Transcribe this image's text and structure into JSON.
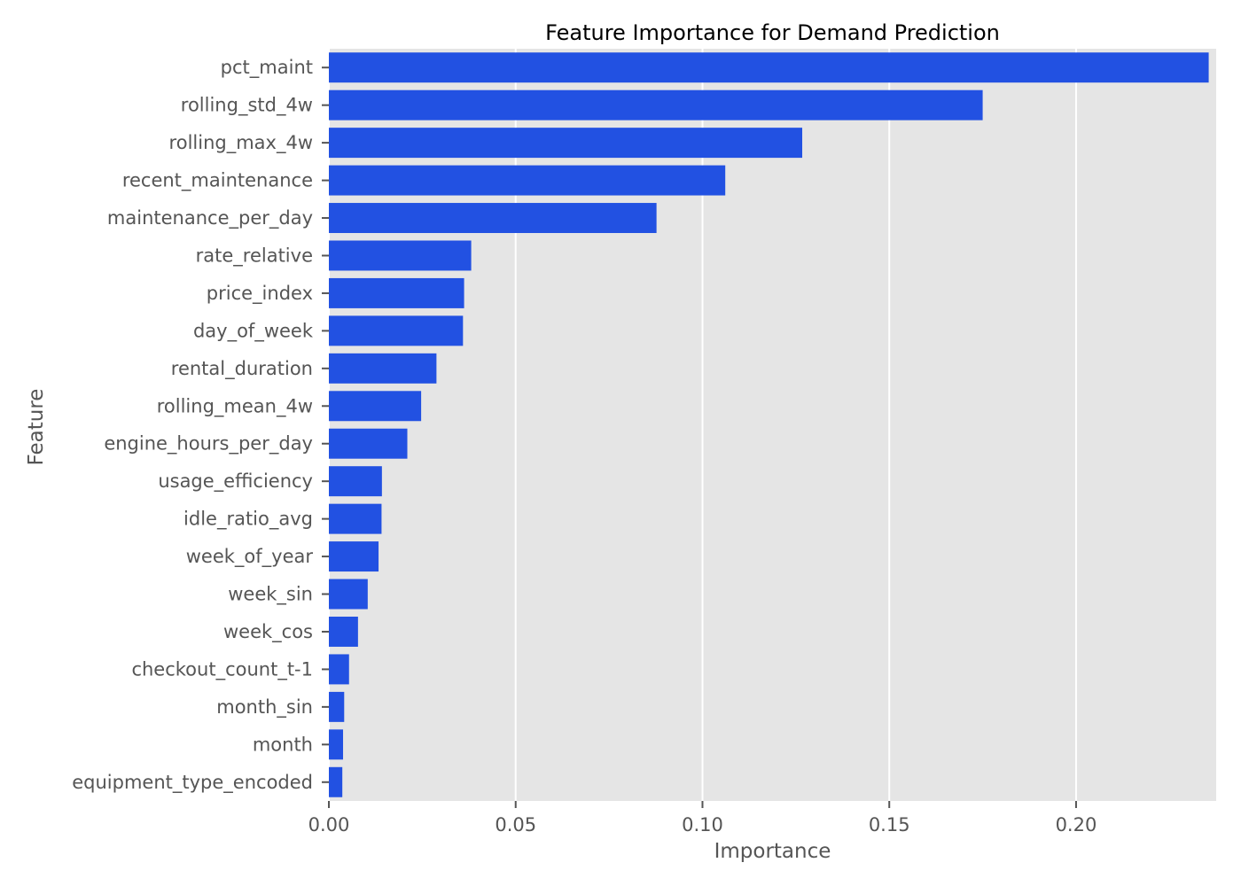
{
  "chart_data": {
    "type": "bar",
    "orientation": "horizontal",
    "title": "Feature Importance for Demand Prediction",
    "xlabel": "Importance",
    "ylabel": "Feature",
    "xlim": [
      0,
      0.2375
    ],
    "xticks": [
      0.0,
      0.05,
      0.1,
      0.15,
      0.2
    ],
    "xtick_labels": [
      "0.00",
      "0.05",
      "0.10",
      "0.15",
      "0.20"
    ],
    "grid": true,
    "legend": "none",
    "bar_color": "#2251e2",
    "background_color": "#e5e5e5",
    "grid_color": "#ffffff",
    "categories": [
      "pct_maint",
      "rolling_std_4w",
      "rolling_max_4w",
      "recent_maintenance",
      "maintenance_per_day",
      "rate_relative",
      "price_index",
      "day_of_week",
      "rental_duration",
      "rolling_mean_4w",
      "engine_hours_per_day",
      "usage_efficiency",
      "idle_ratio_avg",
      "week_of_year",
      "week_sin",
      "week_cos",
      "checkout_count_t-1",
      "month_sin",
      "month",
      "equipment_type_encoded"
    ],
    "values": [
      0.2355,
      0.175,
      0.1267,
      0.1061,
      0.0877,
      0.0381,
      0.0362,
      0.0359,
      0.0288,
      0.0247,
      0.021,
      0.0142,
      0.0141,
      0.0133,
      0.0104,
      0.0078,
      0.0054,
      0.0041,
      0.0038,
      0.0036
    ]
  }
}
